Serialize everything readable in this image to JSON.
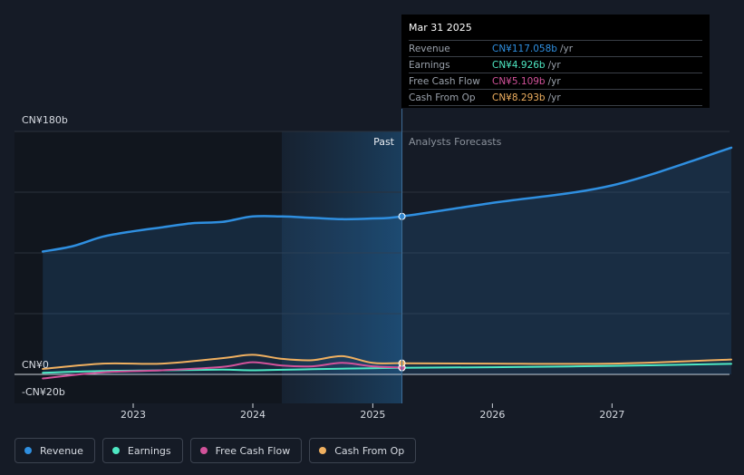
{
  "chart_data": {
    "type": "area",
    "currency_prefix": "CN¥",
    "y_top_label": "CN¥180b",
    "y_zero_label": "CN¥0",
    "y_neg_label": "-CN¥20b",
    "ylim": [
      -20,
      180
    ],
    "x_ticks": [
      "2023",
      "2024",
      "2025",
      "2026",
      "2027"
    ],
    "past_label": "Past",
    "forecast_label": "Analysts Forecasts",
    "divider_date": "2025-03-31",
    "series": [
      {
        "name": "Revenue",
        "color": "#2f8fe0",
        "points": [
          [
            "2022-03-31",
            91
          ],
          [
            "2022-06-30",
            95
          ],
          [
            "2022-09-30",
            102
          ],
          [
            "2022-12-31",
            106
          ],
          [
            "2023-03-31",
            109
          ],
          [
            "2023-06-30",
            112
          ],
          [
            "2023-09-30",
            113
          ],
          [
            "2023-12-31",
            117
          ],
          [
            "2024-03-31",
            117
          ],
          [
            "2024-06-30",
            116
          ],
          [
            "2024-09-30",
            115
          ],
          [
            "2024-12-31",
            115.5
          ],
          [
            "2025-03-31",
            117.058
          ],
          [
            "2025-12-31",
            127
          ],
          [
            "2026-12-31",
            140
          ],
          [
            "2027-12-31",
            168
          ]
        ]
      },
      {
        "name": "Earnings",
        "color": "#4ee8c3",
        "points": [
          [
            "2022-03-31",
            1.2
          ],
          [
            "2022-09-30",
            2.5
          ],
          [
            "2023-03-31",
            3.0
          ],
          [
            "2023-09-30",
            3.5
          ],
          [
            "2023-12-31",
            3.0
          ],
          [
            "2024-06-30",
            3.8
          ],
          [
            "2024-12-31",
            4.6
          ],
          [
            "2025-03-31",
            4.926
          ],
          [
            "2025-12-31",
            5.3
          ],
          [
            "2026-12-31",
            6.3
          ],
          [
            "2027-12-31",
            7.8
          ]
        ]
      },
      {
        "name": "Free Cash Flow",
        "color": "#d2529a",
        "points": [
          [
            "2022-03-31",
            -3.0
          ],
          [
            "2022-09-30",
            1.5
          ],
          [
            "2023-03-31",
            3.0
          ],
          [
            "2023-09-30",
            5.5
          ],
          [
            "2023-12-31",
            9.0
          ],
          [
            "2024-03-31",
            6.5
          ],
          [
            "2024-06-30",
            6.0
          ],
          [
            "2024-09-30",
            8.5
          ],
          [
            "2024-12-31",
            6.0
          ],
          [
            "2025-03-31",
            5.109
          ]
        ]
      },
      {
        "name": "Cash From Op",
        "color": "#f0b060",
        "points": [
          [
            "2022-03-31",
            4.0
          ],
          [
            "2022-09-30",
            8.0
          ],
          [
            "2023-03-31",
            8.0
          ],
          [
            "2023-09-30",
            12.0
          ],
          [
            "2023-12-31",
            14.5
          ],
          [
            "2024-03-31",
            11.5
          ],
          [
            "2024-06-30",
            10.5
          ],
          [
            "2024-09-30",
            13.5
          ],
          [
            "2024-12-31",
            8.5
          ],
          [
            "2025-03-31",
            8.293
          ],
          [
            "2025-12-31",
            8.0
          ],
          [
            "2026-12-31",
            8.0
          ],
          [
            "2027-12-31",
            11.0
          ]
        ]
      }
    ]
  },
  "tooltip": {
    "date": "Mar 31 2025",
    "unit": "/yr",
    "rows": [
      {
        "label": "Revenue",
        "value": "CN¥117.058b",
        "color": "#2f8fe0"
      },
      {
        "label": "Earnings",
        "value": "CN¥4.926b",
        "color": "#4ee8c3"
      },
      {
        "label": "Free Cash Flow",
        "value": "CN¥5.109b",
        "color": "#d2529a"
      },
      {
        "label": "Cash From Op",
        "value": "CN¥8.293b",
        "color": "#f0b060"
      }
    ]
  },
  "legend": [
    {
      "label": "Revenue",
      "color": "#2f8fe0"
    },
    {
      "label": "Earnings",
      "color": "#4ee8c3"
    },
    {
      "label": "Free Cash Flow",
      "color": "#d2529a"
    },
    {
      "label": "Cash From Op",
      "color": "#f0b060"
    }
  ]
}
